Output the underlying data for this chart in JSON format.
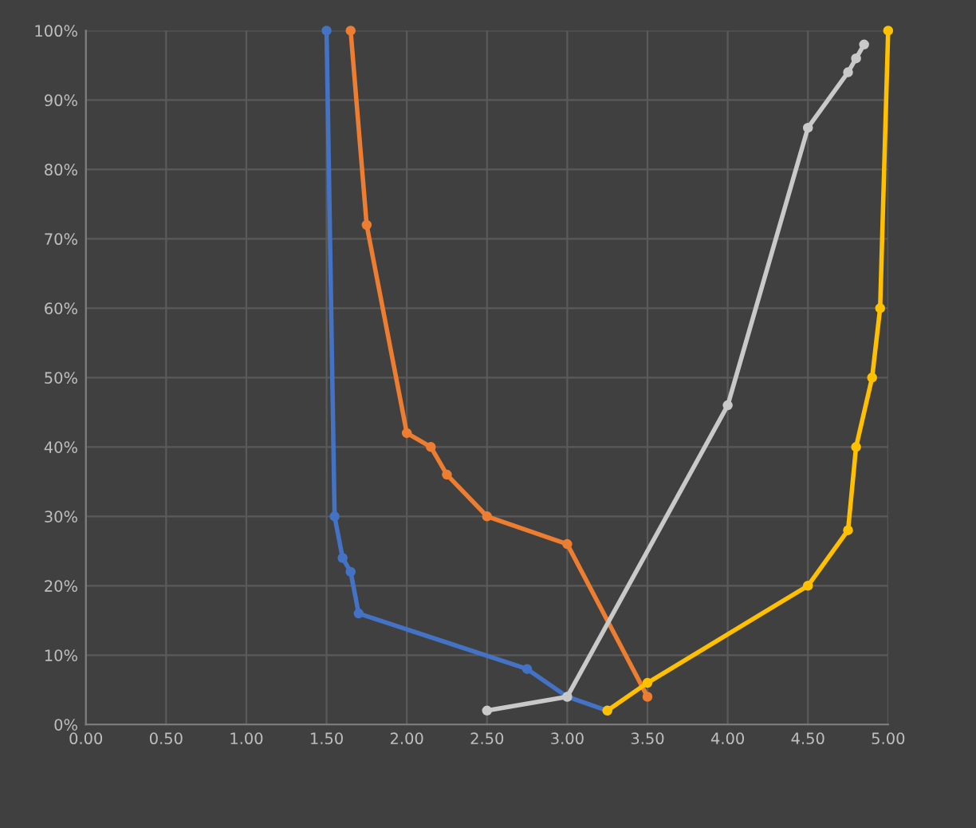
{
  "chart_data": {
    "type": "line",
    "series": [
      {
        "color": "#4472c4",
        "x": [
          1.5,
          1.55,
          1.6,
          1.65,
          1.7,
          2.75,
          3.0,
          3.25
        ],
        "values": [
          100,
          30,
          24,
          22,
          16,
          8,
          4,
          2
        ]
      },
      {
        "color": "#ed7d31",
        "x": [
          1.65,
          1.75,
          2.0,
          2.15,
          2.25,
          2.5,
          3.0,
          3.5
        ],
        "values": [
          100,
          72,
          42,
          40,
          36,
          30,
          26,
          4
        ]
      },
      {
        "color": "#c9c9c9",
        "x": [
          2.5,
          3.0,
          4.0,
          4.5,
          4.75,
          4.8,
          4.85
        ],
        "values": [
          2,
          4,
          46,
          86,
          94,
          96,
          98
        ]
      },
      {
        "color": "#ffc000",
        "x": [
          3.25,
          3.5,
          4.5,
          4.75,
          4.8,
          4.9,
          4.95,
          5.0
        ],
        "values": [
          2,
          6,
          20,
          28,
          40,
          50,
          60,
          100
        ]
      }
    ],
    "xlim": [
      0,
      5
    ],
    "xticks": [
      {
        "value": 0,
        "label": "0.00"
      },
      {
        "value": 0.5,
        "label": "0.50"
      },
      {
        "value": 1,
        "label": "1.00"
      },
      {
        "value": 1.5,
        "label": "1.50"
      },
      {
        "value": 2,
        "label": "2.00"
      },
      {
        "value": 2.5,
        "label": "2.50"
      },
      {
        "value": 3,
        "label": "3.00"
      },
      {
        "value": 3.5,
        "label": "3.50"
      },
      {
        "value": 4,
        "label": "4.00"
      },
      {
        "value": 4.5,
        "label": "4.50"
      },
      {
        "value": 5,
        "label": "5.00"
      }
    ],
    "ylim": [
      0,
      100
    ],
    "yticks": [
      {
        "value": 0,
        "label": "0%"
      },
      {
        "value": 10,
        "label": "10%"
      },
      {
        "value": 20,
        "label": "20%"
      },
      {
        "value": 30,
        "label": "30%"
      },
      {
        "value": 40,
        "label": "40%"
      },
      {
        "value": 50,
        "label": "50%"
      },
      {
        "value": 60,
        "label": "60%"
      },
      {
        "value": 70,
        "label": "70%"
      },
      {
        "value": 80,
        "label": "80%"
      },
      {
        "value": 90,
        "label": "90%"
      },
      {
        "value": 100,
        "label": "100%"
      }
    ],
    "grid": true,
    "marker": "circle",
    "line_style": "solid"
  }
}
